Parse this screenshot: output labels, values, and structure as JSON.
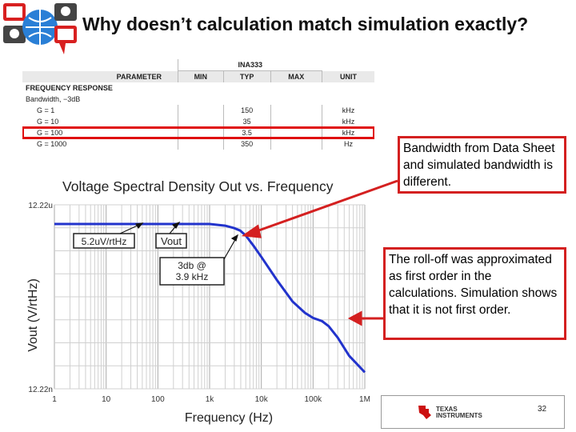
{
  "title": "Why doesn’t calculation match simulation exactly?",
  "datasheet": {
    "part": "INA333",
    "headers": [
      "PARAMETER",
      "MIN",
      "TYP",
      "MAX",
      "UNIT"
    ],
    "section": "FREQUENCY RESPONSE",
    "subsection": "Bandwidth, −3dB",
    "rows": [
      {
        "param": "G = 1",
        "typ": "150",
        "unit": "kHz"
      },
      {
        "param": "G = 10",
        "typ": "35",
        "unit": "kHz"
      },
      {
        "param": "G = 100",
        "typ": "3.5",
        "unit": "kHz"
      },
      {
        "param": "G = 1000",
        "typ": "350",
        "unit": "Hz"
      }
    ]
  },
  "callouts": {
    "bandwidth": "Bandwidth from Data Sheet and simulated bandwidth is different.",
    "rolloff": "The roll-off was approximated as first order in the calculations. Simulation shows that it is not first order."
  },
  "chart_data": {
    "type": "line",
    "title": "Voltage Spectral Density Out vs. Frequency",
    "xlabel": "Frequency (Hz)",
    "ylabel": "Vout (V/rtHz)",
    "x_scale": "log",
    "xlim": [
      1,
      1000000
    ],
    "x_ticks": [
      "1",
      "10",
      "100",
      "1k",
      "10k",
      "100k",
      "1M"
    ],
    "y_ticks": [
      "12.22u",
      "12.22n"
    ],
    "series": [
      {
        "name": "Vout",
        "color": "#2233cc",
        "x": [
          1,
          10,
          100,
          1000,
          2000,
          3000,
          3900,
          5000,
          7000,
          10000,
          20000,
          40000,
          70000,
          100000,
          150000,
          200000,
          300000,
          500000,
          1000000
        ],
        "y_rel": [
          1.0,
          1.0,
          1.0,
          1.0,
          0.99,
          0.975,
          0.96,
          0.93,
          0.87,
          0.8,
          0.66,
          0.53,
          0.46,
          0.43,
          0.41,
          0.38,
          0.31,
          0.2,
          0.1
        ]
      }
    ],
    "annotations": [
      {
        "text": "5.2uV/rtHz"
      },
      {
        "text": "Vout"
      },
      {
        "text": "3db @\n3.9 kHz"
      }
    ]
  },
  "footer": {
    "company_line1": "TEXAS",
    "company_line2": "INSTRUMENTS",
    "page_number": "32"
  },
  "colors": {
    "callout_border": "#d42020",
    "curve": "#2233cc",
    "arrow": "#d42020"
  }
}
